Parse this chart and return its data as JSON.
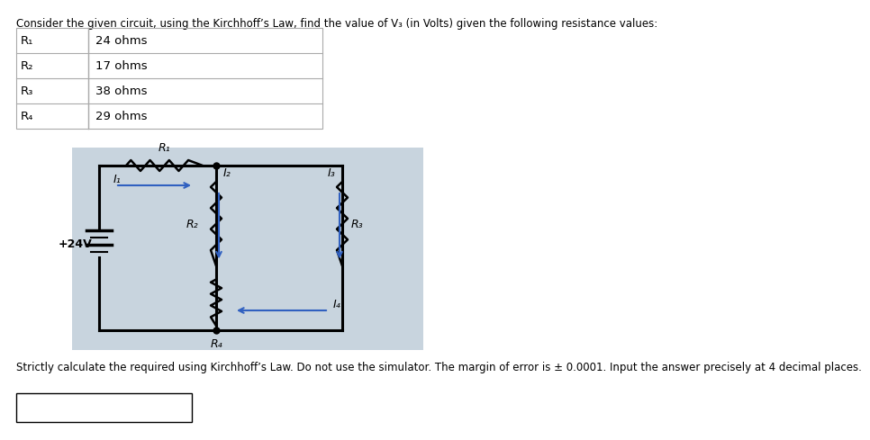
{
  "title": "Consider the given circuit, using the Kirchhoff’s Law, find the value of V₃ (in Volts) given the following resistance values:",
  "table_data": [
    [
      "R₁",
      "24 ohms"
    ],
    [
      "R₂",
      "17 ohms"
    ],
    [
      "R₃",
      "38 ohms"
    ],
    [
      "R₄",
      "29 ohms"
    ]
  ],
  "footer": "Strictly calculate the required using Kirchhoff’s Law. Do not use the simulator. The margin of error is ± 0.0001. Input the answer precisely at 4 decimal places.",
  "circuit_bg": "#c8d4de",
  "wire_color": "#000000",
  "resistor_color": "#000000",
  "arrow_color": "#3060c0",
  "source_label": "+24V",
  "R1_label": "R₁",
  "R2_label": "R₂",
  "R3_label": "R₃",
  "R4_label": "R₄",
  "I1_label": "I₁",
  "I2_label": "I₂",
  "I3_label": "I₃",
  "I4_label": "I₄"
}
